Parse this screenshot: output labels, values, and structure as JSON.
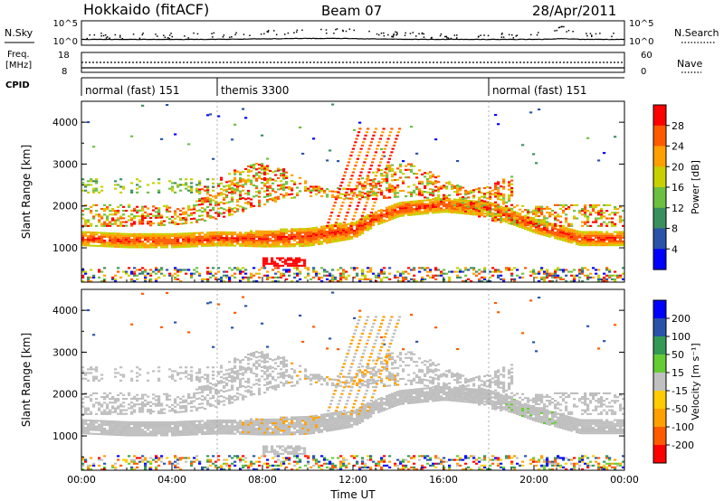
{
  "header": {
    "station": "Hokkaido (fitACF)",
    "beam": "Beam 07",
    "date": "28/Apr/2011"
  },
  "top_panel": {
    "left_label_1": "N.Sky",
    "left_ticks_1": [
      "10^5",
      "10^0"
    ],
    "right_ticks_1": [
      "10^5",
      "10^0"
    ],
    "right_label_1": "N.Search",
    "left_label_2": "Freq.",
    "left_unit_2": "[MHz]",
    "left_ticks_2": [
      "18",
      "8"
    ],
    "right_ticks_2": [
      "60",
      "0"
    ],
    "right_label_2": "Nave",
    "cpid_label": "CPID",
    "cpid_segments": [
      {
        "start_hour": 0,
        "end_hour": 6,
        "label": "normal (fast) 151"
      },
      {
        "start_hour": 6,
        "end_hour": 18,
        "label": "themis 3300"
      },
      {
        "start_hour": 18,
        "end_hour": 24,
        "label": "normal (fast) 151"
      }
    ]
  },
  "colors": {
    "power": [
      "#0000ff",
      "#2a52a8",
      "#3b8f5f",
      "#6dbf40",
      "#c8d000",
      "#ffa000",
      "#ff5a00",
      "#ff0000"
    ],
    "velocity": [
      "#ff0000",
      "#ff5a00",
      "#ffa000",
      "#ffcc00",
      "#c0c0c0",
      "#66cc33",
      "#339955",
      "#2a52a8",
      "#0000ff"
    ],
    "ground_scatter": "#bebebe"
  },
  "chart_data": [
    {
      "type": "heatmap",
      "panel": "power",
      "xlabel": "",
      "ylabel": "Slant Range [km]",
      "xlim_hours": [
        0,
        24
      ],
      "ylim_km": [
        180,
        4500
      ],
      "y_ticks": [
        1000,
        2000,
        3000,
        4000
      ],
      "y_tick_labels": [
        "1000",
        "2000",
        "3000",
        "4000"
      ],
      "colorbar": {
        "label": "Power [dB]",
        "range": [
          0,
          32
        ],
        "ticks": [
          4,
          8,
          12,
          16,
          20,
          24,
          28
        ],
        "tick_labels": [
          "4",
          "8",
          "12",
          "16",
          "20",
          "24",
          "28"
        ]
      },
      "main_band_range_km": [
        [
          0,
          1200
        ],
        [
          2,
          1150
        ],
        [
          4,
          1150
        ],
        [
          6,
          1200
        ],
        [
          8,
          1200
        ],
        [
          10,
          1250
        ],
        [
          12,
          1400
        ],
        [
          13,
          1700
        ],
        [
          14,
          1900
        ],
        [
          16,
          2000
        ],
        [
          18,
          1900
        ],
        [
          19,
          1700
        ],
        [
          20,
          1500
        ],
        [
          22,
          1200
        ],
        [
          24,
          1200
        ]
      ]
    },
    {
      "type": "heatmap",
      "panel": "velocity",
      "xlabel": "Time UT",
      "ylabel": "Slant Range [km]",
      "xlim_hours": [
        0,
        24
      ],
      "ylim_km": [
        180,
        4500
      ],
      "x_ticks": [
        0,
        4,
        8,
        12,
        16,
        20,
        24
      ],
      "x_tick_labels": [
        "00:00",
        "04:00",
        "08:00",
        "12:00",
        "16:00",
        "20:00",
        "00:00"
      ],
      "y_ticks": [
        1000,
        2000,
        3000,
        4000
      ],
      "y_tick_labels": [
        "1000",
        "2000",
        "3000",
        "4000"
      ],
      "colorbar": {
        "label": "Velocity [m s⁻¹]",
        "range": [
          -250,
          250
        ],
        "ticks": [
          200,
          100,
          50,
          15,
          -15,
          -50,
          -100,
          -200
        ],
        "tick_labels": [
          "200",
          "100",
          "50",
          "15",
          "-15",
          "-50",
          "-100",
          "-200"
        ]
      }
    }
  ]
}
